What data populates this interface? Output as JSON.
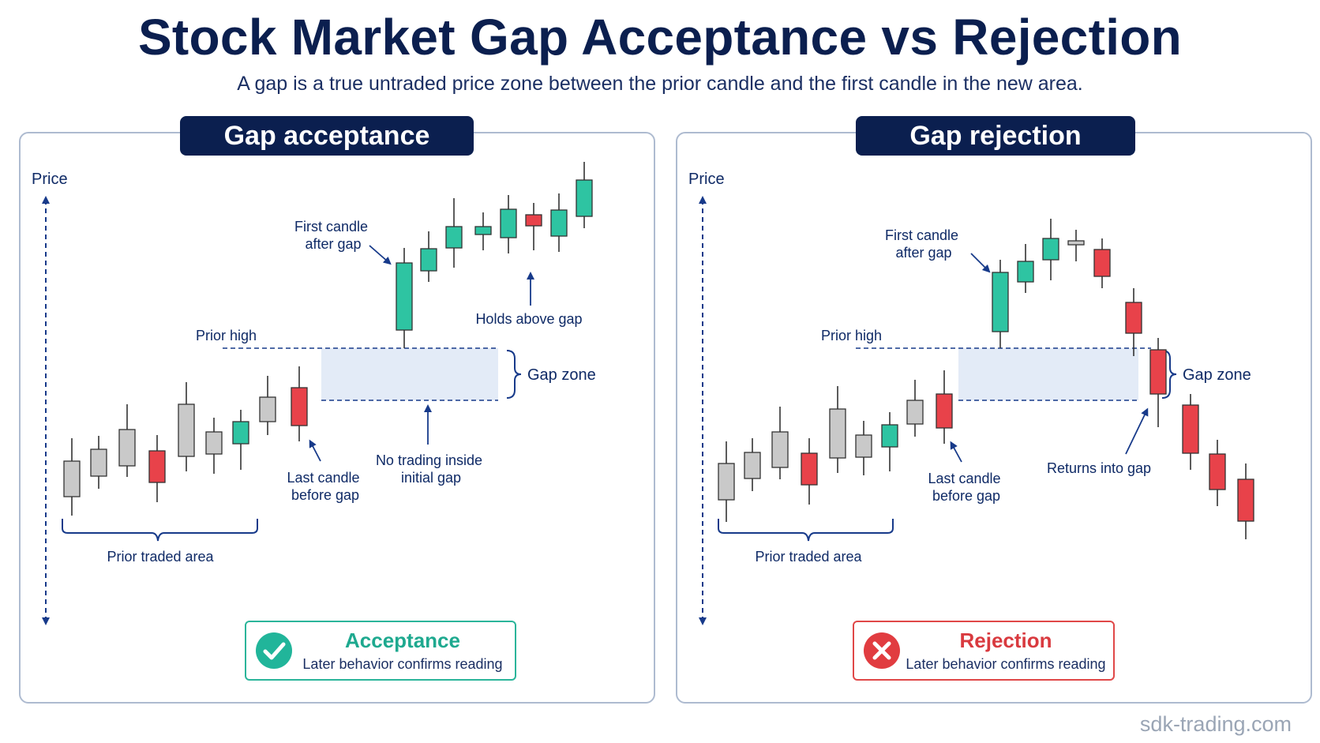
{
  "title": "Stock Market Gap Acceptance vs Rejection",
  "subtitle": "A gap is a true untraded price zone between the prior candle and the first candle in the new area.",
  "colors": {
    "navy": "#0b1f4f",
    "label": "#0f2a66",
    "bull": "#2ec4a2",
    "bear": "#e8424a",
    "neutral": "#c9c9c9",
    "gap_zone": "#e3ebf7",
    "panel_border": "#aebbd0"
  },
  "panels": [
    {
      "header": "Gap acceptance",
      "axis_label": "Price",
      "labels": {
        "first_candle": [
          "First candle",
          "after gap"
        ],
        "prior_high": "Prior high",
        "gap_zone": "Gap zone",
        "behavior": "Holds above gap",
        "note": [
          "No trading inside",
          "initial gap"
        ],
        "last_candle": [
          "Last candle",
          "before gap"
        ],
        "prior_area": "Prior traded area"
      },
      "badge": {
        "icon": "check-icon",
        "title": "Acceptance",
        "subtitle": "Later behavior confirms reading"
      }
    },
    {
      "header": "Gap rejection",
      "axis_label": "Price",
      "labels": {
        "first_candle": [
          "First candle",
          "after gap"
        ],
        "prior_high": "Prior high",
        "gap_zone": "Gap zone",
        "behavior": "Returns into gap",
        "last_candle": [
          "Last candle",
          "before gap"
        ],
        "prior_area": "Prior traded area"
      },
      "badge": {
        "icon": "x-icon",
        "title": "Rejection",
        "subtitle": "Later behavior confirms reading"
      }
    }
  ],
  "watermark": "sdk-trading.com"
}
